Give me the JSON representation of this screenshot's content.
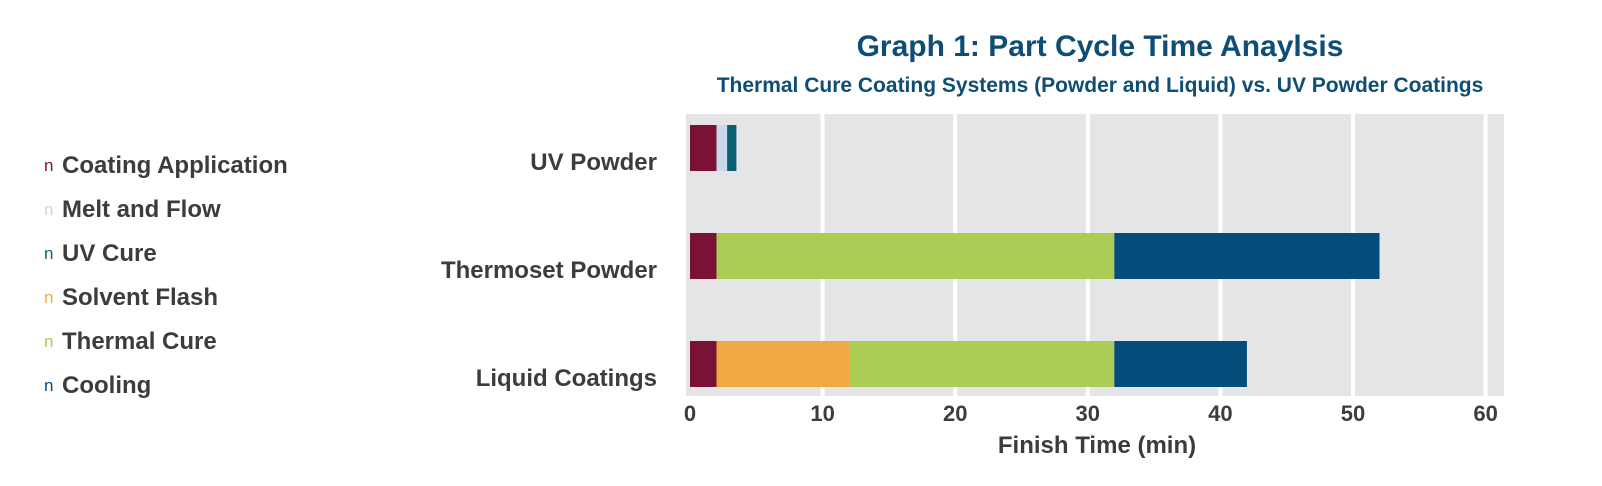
{
  "chart_data": {
    "type": "bar",
    "orientation": "horizontal",
    "stacked": true,
    "title": "Graph 1: Part Cycle Time Anaylsis",
    "subtitle": "Thermal Cure Coating Systems (Powder and Liquid) vs. UV Powder Coatings",
    "xlabel": "Finish Time (min)",
    "ylabel": "",
    "xlim": [
      0,
      60
    ],
    "x_ticks": [
      "0",
      "10",
      "20",
      "30",
      "40",
      "50",
      "60"
    ],
    "grid": "vertical",
    "legend_position": "left",
    "legend_marker": "n",
    "categories": [
      "UV Powder",
      "Thermoset Powder",
      "Liquid Coatings"
    ],
    "series": [
      {
        "name": "Coating Application",
        "color": "#7a1238",
        "values": [
          2,
          2,
          2
        ]
      },
      {
        "name": "Melt and Flow",
        "color": "#c9d8ea",
        "values": [
          0.8,
          0,
          0
        ]
      },
      {
        "name": "UV Cure",
        "color": "#0b5e73",
        "values": [
          0.7,
          0,
          0
        ]
      },
      {
        "name": "Solvent Flash",
        "color": "#f0a842",
        "values": [
          0,
          0,
          10
        ]
      },
      {
        "name": "Thermal Cure",
        "color": "#abcd55",
        "values": [
          0,
          30,
          20
        ]
      },
      {
        "name": "Cooling",
        "color": "#034d7a",
        "values": [
          0,
          20,
          10
        ]
      }
    ]
  }
}
